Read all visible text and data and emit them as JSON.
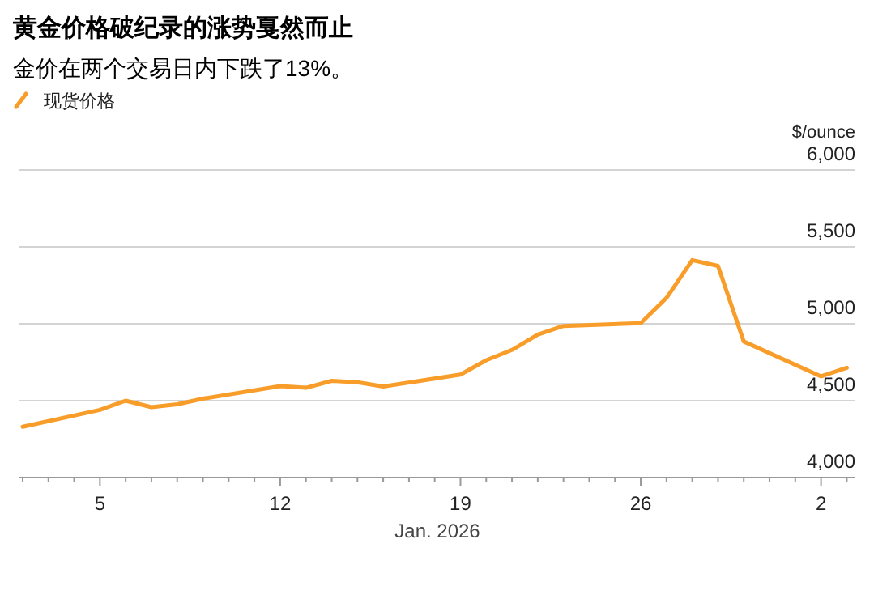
{
  "chart_data": {
    "type": "line",
    "title": "黄金价格破纪录的涨势戛然而止",
    "subtitle": "金价在两个交易日内下跌了13%。",
    "xlabel": "Jan. 2026",
    "ylabel": "$/ounce",
    "x": [
      "2026-01-02",
      "2026-01-05",
      "2026-01-06",
      "2026-01-07",
      "2026-01-08",
      "2026-01-09",
      "2026-01-12",
      "2026-01-13",
      "2026-01-14",
      "2026-01-15",
      "2026-01-16",
      "2026-01-19",
      "2026-01-20",
      "2026-01-21",
      "2026-01-22",
      "2026-01-23",
      "2026-01-26",
      "2026-01-27",
      "2026-01-28",
      "2026-01-29",
      "2026-01-30",
      "2026-02-02",
      "2026-02-03"
    ],
    "series": [
      {
        "name": "现货价格",
        "color": "#f99d2a",
        "values": [
          4330,
          4440,
          4500,
          4458,
          4476,
          4513,
          4595,
          4584,
          4629,
          4620,
          4592,
          4670,
          4763,
          4830,
          4930,
          4986,
          5004,
          5168,
          5414,
          5376,
          4885,
          4658,
          4714
        ]
      }
    ],
    "xlim": [
      "2026-01-01T21:00",
      "2026-02-03T08:00"
    ],
    "xticks": [
      {
        "value": "2026-01-02",
        "label": null
      },
      {
        "value": "2026-01-03",
        "label": null
      },
      {
        "value": "2026-01-04",
        "label": null
      },
      {
        "value": "2026-01-05",
        "label": "5"
      },
      {
        "value": "2026-01-06",
        "label": null
      },
      {
        "value": "2026-01-07",
        "label": null
      },
      {
        "value": "2026-01-08",
        "label": null
      },
      {
        "value": "2026-01-09",
        "label": null
      },
      {
        "value": "2026-01-10",
        "label": null
      },
      {
        "value": "2026-01-11",
        "label": null
      },
      {
        "value": "2026-01-12",
        "label": "12"
      },
      {
        "value": "2026-01-13",
        "label": null
      },
      {
        "value": "2026-01-14",
        "label": null
      },
      {
        "value": "2026-01-15",
        "label": null
      },
      {
        "value": "2026-01-16",
        "label": null
      },
      {
        "value": "2026-01-17",
        "label": null
      },
      {
        "value": "2026-01-18",
        "label": null
      },
      {
        "value": "2026-01-19",
        "label": "19"
      },
      {
        "value": "2026-01-20",
        "label": null
      },
      {
        "value": "2026-01-21",
        "label": null
      },
      {
        "value": "2026-01-22",
        "label": null
      },
      {
        "value": "2026-01-23",
        "label": null
      },
      {
        "value": "2026-01-24",
        "label": null
      },
      {
        "value": "2026-01-25",
        "label": null
      },
      {
        "value": "2026-01-26",
        "label": "26"
      },
      {
        "value": "2026-01-27",
        "label": null
      },
      {
        "value": "2026-01-28",
        "label": null
      },
      {
        "value": "2026-01-29",
        "label": null
      },
      {
        "value": "2026-01-30",
        "label": null
      },
      {
        "value": "2026-01-31",
        "label": null
      },
      {
        "value": "2026-02-01",
        "label": null
      },
      {
        "value": "2026-02-02",
        "label": "2"
      },
      {
        "value": "2026-02-03",
        "label": null
      }
    ],
    "ylim": [
      4000,
      6000
    ],
    "yticks": [
      {
        "value": 4000,
        "label": "4,000"
      },
      {
        "value": 4500,
        "label": "4,500"
      },
      {
        "value": 5000,
        "label": "5,000"
      },
      {
        "value": 5500,
        "label": "5,500"
      },
      {
        "value": 6000,
        "label": "6,000"
      }
    ],
    "grid": "y",
    "legend": "top left",
    "marker": "none",
    "line_style": "solid"
  }
}
